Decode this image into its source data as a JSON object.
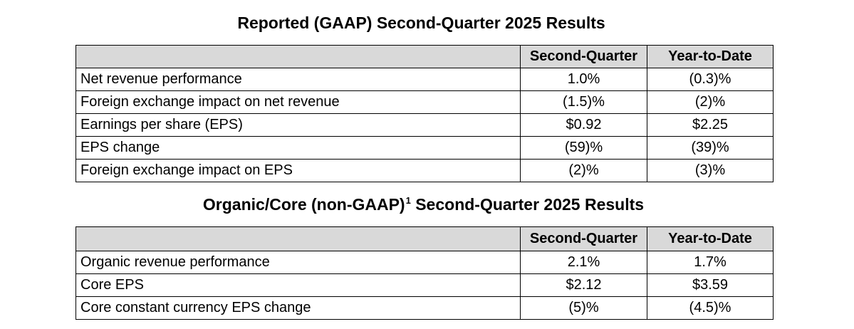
{
  "gaap": {
    "title": "Reported (GAAP) Second-Quarter 2025 Results",
    "col_q": "Second-Quarter",
    "col_ytd": "Year-to-Date",
    "rows": [
      {
        "label": "Net revenue performance",
        "q": "1.0%",
        "ytd": "(0.3)%"
      },
      {
        "label": "Foreign exchange impact on net revenue",
        "q": "(1.5)%",
        "ytd": "(2)%"
      },
      {
        "label": "Earnings per share (EPS)",
        "q": "$0.92",
        "ytd": "$2.25"
      },
      {
        "label": "EPS change",
        "q": "(59)%",
        "ytd": "(39)%"
      },
      {
        "label": "Foreign exchange impact on EPS",
        "q": "(2)%",
        "ytd": "(3)%"
      }
    ]
  },
  "core": {
    "title_main": "Organic/Core (non-GAAP)",
    "title_footnote": "1",
    "title_rest": " Second-Quarter 2025 Results",
    "col_q": "Second-Quarter",
    "col_ytd": "Year-to-Date",
    "rows": [
      {
        "label": "Organic revenue performance",
        "q": "2.1%",
        "ytd": "1.7%"
      },
      {
        "label": "Core EPS",
        "q": "$2.12",
        "ytd": "$3.59"
      },
      {
        "label": "Core constant currency EPS change",
        "q": "(5)%",
        "ytd": "(4.5)%"
      }
    ]
  }
}
